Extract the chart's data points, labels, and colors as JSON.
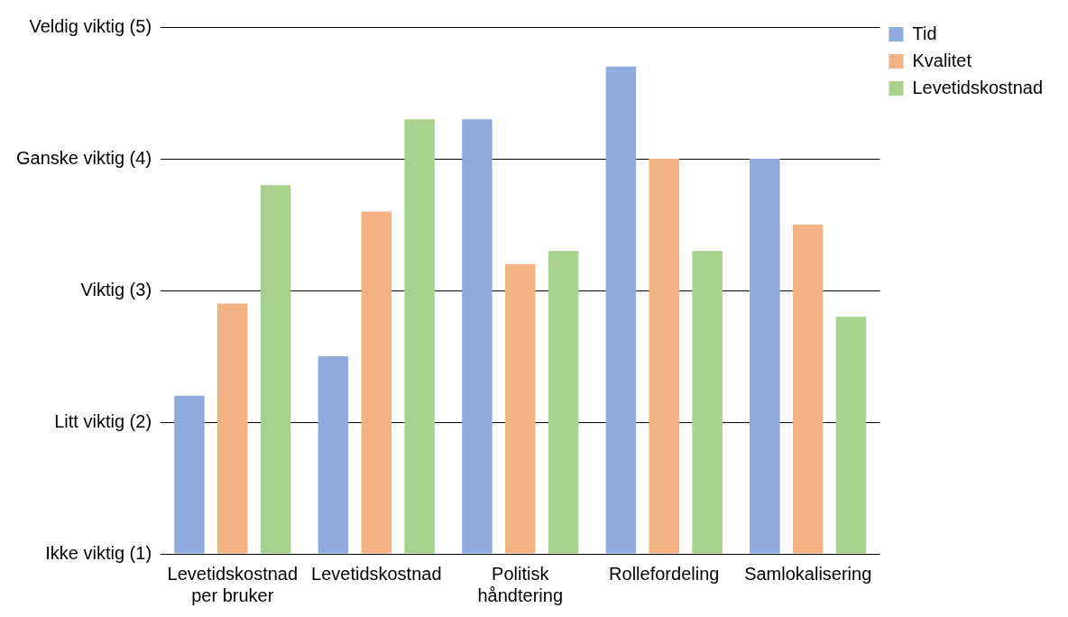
{
  "chart_data": {
    "type": "bar",
    "categories": [
      "Levetidskostnad per bruker",
      "Levetidskostnad",
      "Politisk håndtering",
      "Rollefordeling",
      "Samlokalisering"
    ],
    "series": [
      {
        "name": "Tid",
        "color": "#8faadc",
        "values": [
          2.2,
          2.5,
          4.3,
          4.7,
          4.0
        ]
      },
      {
        "name": "Kvalitet",
        "color": "#f4b183",
        "values": [
          2.9,
          3.6,
          3.2,
          4.0,
          3.5
        ]
      },
      {
        "name": "Levetidskostnad",
        "color": "#a9d18e",
        "values": [
          3.8,
          4.3,
          3.3,
          3.3,
          2.8
        ]
      }
    ],
    "ylim": [
      1,
      5
    ],
    "yticks": [
      {
        "value": 1,
        "label": "Ikke viktig (1)"
      },
      {
        "value": 2,
        "label": "Litt viktig (2)"
      },
      {
        "value": 3,
        "label": "Viktig (3)"
      },
      {
        "value": 4,
        "label": "Ganske viktig (4)"
      },
      {
        "value": 5,
        "label": "Veldig viktig (5)"
      }
    ],
    "grid": "y",
    "legend": "top right"
  }
}
